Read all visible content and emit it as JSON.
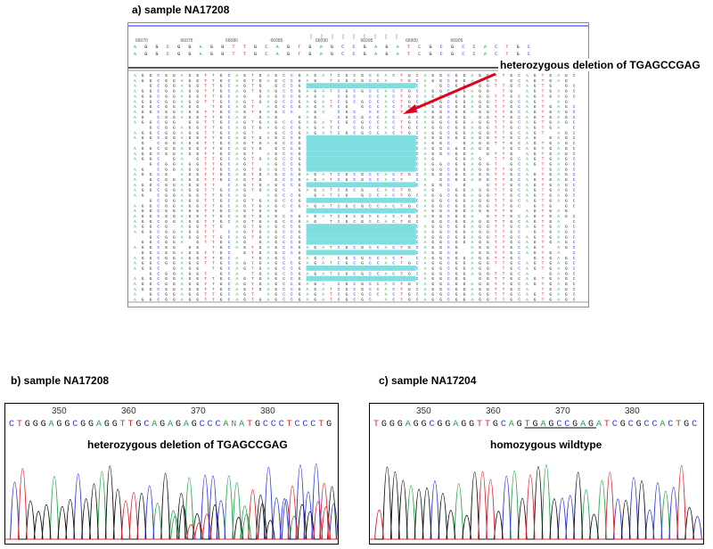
{
  "panel_a": {
    "title": "a) sample NA17208",
    "ruler_ticks": [
      "66070",
      "66075",
      "66080",
      "66085",
      "66090",
      "66095",
      "66900",
      "66905"
    ],
    "annotation": "heterozygous deletion of TGAGCCGAG",
    "consensus": "AGGCGGAGGTTGCAGTGAGCCGAGATCGCGCCACTGC",
    "deleted_motif": "TGAGCCGAG",
    "highlight_color": "#7fdfe0",
    "arrow_color": "#e0001b"
  },
  "panel_b": {
    "title": "b) sample NA17208",
    "ticks": [
      "350",
      "360",
      "370",
      "380"
    ],
    "sequence": "CTGGGAGGCGGAGGTTGCAGAGAGCCCANATGCCCTCCCTG",
    "annotation": "heterozygous deletion of TGAGCCGAG",
    "arrow_color": "#e0001b"
  },
  "panel_c": {
    "title": "c) sample NA17204",
    "ticks": [
      "350",
      "360",
      "370",
      "380"
    ],
    "sequence": "TGGGAGGCGGAGGTTGCAGTGAGCCGAGATCGCGCCACTGC",
    "underlined": "TGAGCCGAG",
    "annotation": "homozygous wildtype"
  },
  "base_colors": {
    "A": "#22a84a",
    "C": "#2b35d8",
    "G": "#111111",
    "T": "#e0212b",
    "N": "#777777"
  }
}
